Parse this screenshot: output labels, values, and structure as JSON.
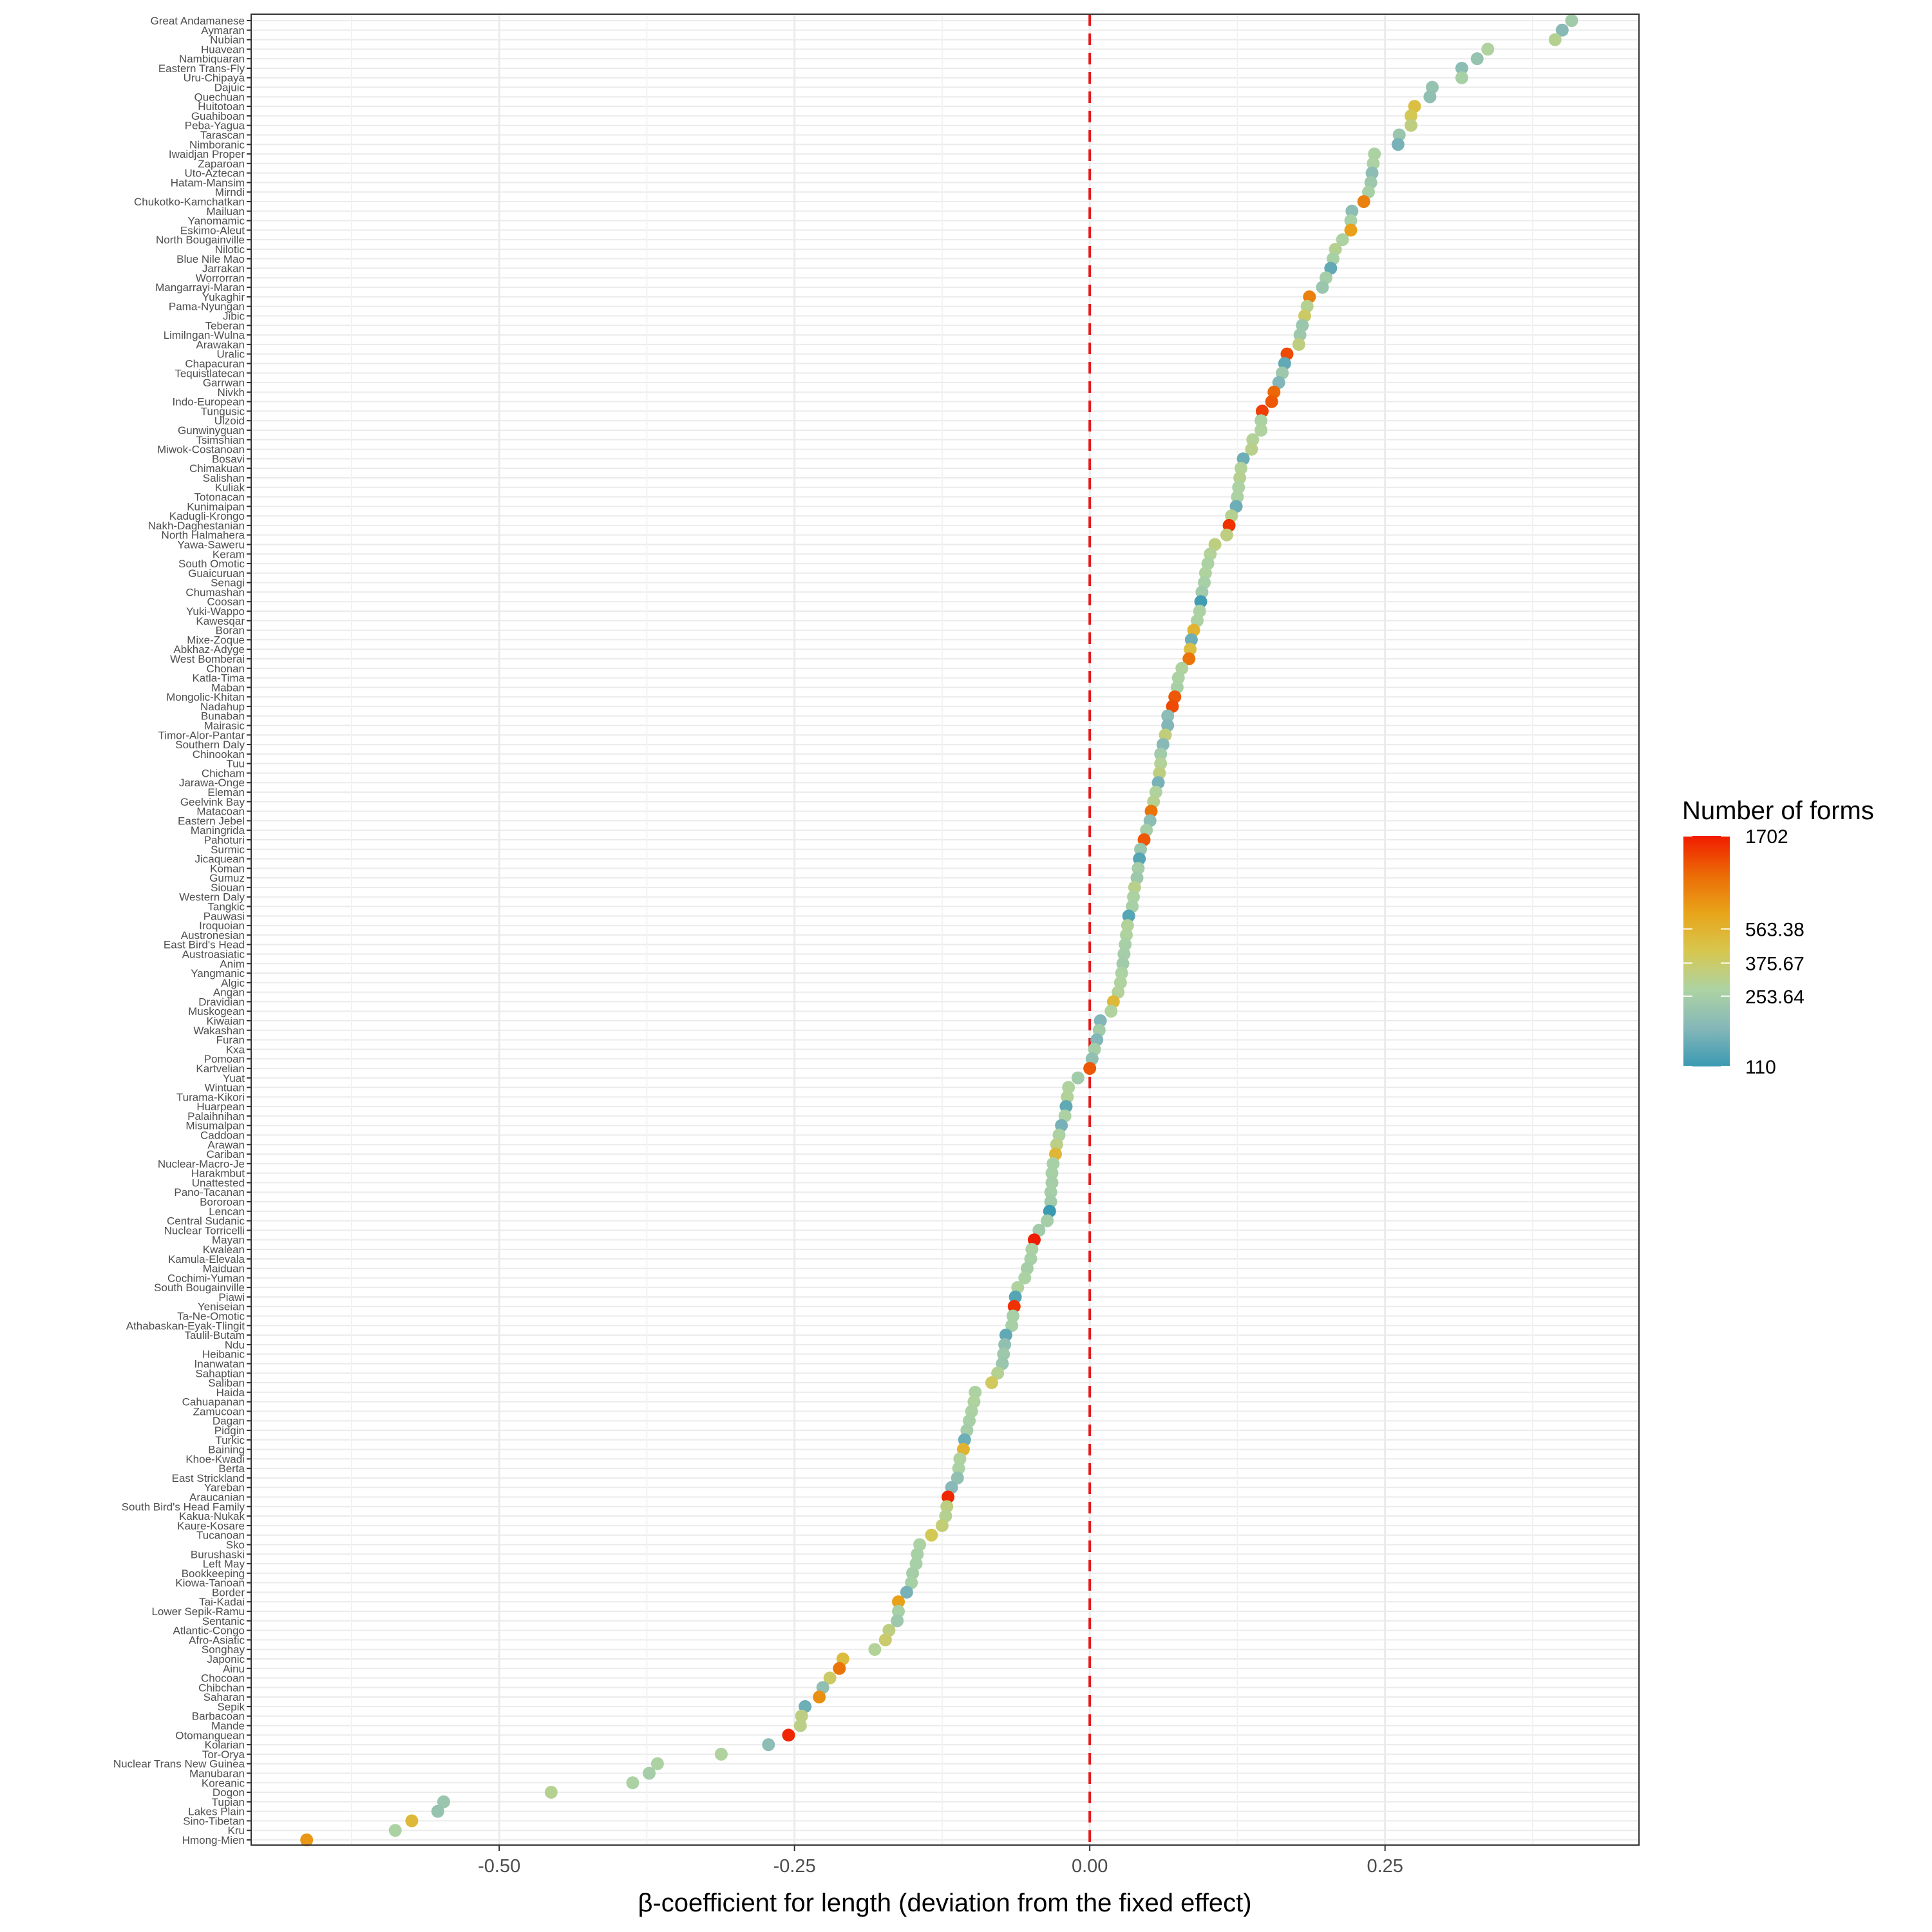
{
  "chart_data": {
    "type": "scatter",
    "title": "",
    "xlabel": "β-coefficient for length (deviation from the fixed effect)",
    "ylabel": "",
    "xlim": [
      -0.71,
      0.465
    ],
    "x_ticks": [
      -0.5,
      -0.25,
      0.0,
      0.25
    ],
    "x_tick_labels": [
      "-0.50",
      "-0.25",
      "0.00",
      "0.25"
    ],
    "reference_line": {
      "x": 0,
      "color": "#e41a1c",
      "style": "dashed"
    },
    "grid": true,
    "legend": {
      "title": "Number of forms",
      "placement": "right",
      "min": 110,
      "max": 1702,
      "breaks": [
        1702,
        563.38,
        375.67,
        253.64,
        110
      ],
      "break_labels": [
        "1702",
        "563.38",
        "375.67",
        "253.64",
        "110"
      ],
      "colors": [
        "#3a9ab2",
        "#85b7b9",
        "#add3a3",
        "#d7c74f",
        "#e8a419",
        "#ec6a06",
        "#f11b00"
      ]
    },
    "points": [
      {
        "family": "Great Andamanese",
        "x": 0.408,
        "forms": 240
      },
      {
        "family": "Aymaran",
        "x": 0.4,
        "forms": 180
      },
      {
        "family": "Nubian",
        "x": 0.394,
        "forms": 300
      },
      {
        "family": "Huavean",
        "x": 0.337,
        "forms": 280
      },
      {
        "family": "Nambiquaran",
        "x": 0.328,
        "forms": 210
      },
      {
        "family": "Eastern Trans-Fly",
        "x": 0.315,
        "forms": 190
      },
      {
        "family": "Uru-Chipaya",
        "x": 0.315,
        "forms": 260
      },
      {
        "family": "Dajuic",
        "x": 0.29,
        "forms": 210
      },
      {
        "family": "Quechuan",
        "x": 0.288,
        "forms": 200
      },
      {
        "family": "Huitotoan",
        "x": 0.275,
        "forms": 480
      },
      {
        "family": "Guahiboan",
        "x": 0.272,
        "forms": 420
      },
      {
        "family": "Peba-Yagua",
        "x": 0.272,
        "forms": 330
      },
      {
        "family": "Tarascan",
        "x": 0.262,
        "forms": 220
      },
      {
        "family": "Nimboranic",
        "x": 0.261,
        "forms": 160
      },
      {
        "family": "Iwaidjan Proper",
        "x": 0.241,
        "forms": 270
      },
      {
        "family": "Zaparoan",
        "x": 0.24,
        "forms": 270
      },
      {
        "family": "Uto-Aztecan",
        "x": 0.239,
        "forms": 190
      },
      {
        "family": "Hatam-Mansim",
        "x": 0.238,
        "forms": 230
      },
      {
        "family": "Mirndi",
        "x": 0.236,
        "forms": 260
      },
      {
        "family": "Chukotko-Kamchatkan",
        "x": 0.232,
        "forms": 900
      },
      {
        "family": "Mailuan",
        "x": 0.222,
        "forms": 190
      },
      {
        "family": "Yanomamic",
        "x": 0.221,
        "forms": 260
      },
      {
        "family": "Eskimo-Aleut",
        "x": 0.221,
        "forms": 700
      },
      {
        "family": "North Bougainville",
        "x": 0.214,
        "forms": 270
      },
      {
        "family": "Nilotic",
        "x": 0.208,
        "forms": 300
      },
      {
        "family": "Blue Nile Mao",
        "x": 0.206,
        "forms": 260
      },
      {
        "family": "Jarrakan",
        "x": 0.204,
        "forms": 140
      },
      {
        "family": "Worrorran",
        "x": 0.2,
        "forms": 250
      },
      {
        "family": "Mangarrayi-Maran",
        "x": 0.197,
        "forms": 220
      },
      {
        "family": "Yukaghir",
        "x": 0.186,
        "forms": 900
      },
      {
        "family": "Pama-Nyungan",
        "x": 0.184,
        "forms": 300
      },
      {
        "family": "Jibic",
        "x": 0.182,
        "forms": 380
      },
      {
        "family": "Teberan",
        "x": 0.18,
        "forms": 220
      },
      {
        "family": "Limilngan-Wulna",
        "x": 0.178,
        "forms": 230
      },
      {
        "family": "Arawakan",
        "x": 0.177,
        "forms": 330
      },
      {
        "family": "Uralic",
        "x": 0.167,
        "forms": 1300
      },
      {
        "family": "Chapacuran",
        "x": 0.165,
        "forms": 140
      },
      {
        "family": "Tequistlatecan",
        "x": 0.163,
        "forms": 230
      },
      {
        "family": "Garrwan",
        "x": 0.16,
        "forms": 170
      },
      {
        "family": "Nivkh",
        "x": 0.156,
        "forms": 1100
      },
      {
        "family": "Indo-European",
        "x": 0.154,
        "forms": 1200
      },
      {
        "family": "Tungusic",
        "x": 0.146,
        "forms": 1400
      },
      {
        "family": "Ulzoid",
        "x": 0.145,
        "forms": 270
      },
      {
        "family": "Gunwinyguan",
        "x": 0.145,
        "forms": 280
      },
      {
        "family": "Tsimshian",
        "x": 0.138,
        "forms": 290
      },
      {
        "family": "Miwok-Costanoan",
        "x": 0.137,
        "forms": 310
      },
      {
        "family": "Bosavi",
        "x": 0.13,
        "forms": 150
      },
      {
        "family": "Chimakuan",
        "x": 0.128,
        "forms": 290
      },
      {
        "family": "Salishan",
        "x": 0.127,
        "forms": 300
      },
      {
        "family": "Kuliak",
        "x": 0.126,
        "forms": 270
      },
      {
        "family": "Totonacan",
        "x": 0.125,
        "forms": 270
      },
      {
        "family": "Kunimaipan",
        "x": 0.124,
        "forms": 150
      },
      {
        "family": "Kadugli-Krongo",
        "x": 0.12,
        "forms": 300
      },
      {
        "family": "Nakh-Daghestanian",
        "x": 0.118,
        "forms": 1500
      },
      {
        "family": "North Halmahera",
        "x": 0.116,
        "forms": 330
      },
      {
        "family": "Yawa-Saweru",
        "x": 0.106,
        "forms": 330
      },
      {
        "family": "Keram",
        "x": 0.102,
        "forms": 290
      },
      {
        "family": "South Omotic",
        "x": 0.1,
        "forms": 270
      },
      {
        "family": "Guaicuruan",
        "x": 0.098,
        "forms": 280
      },
      {
        "family": "Senagi",
        "x": 0.097,
        "forms": 260
      },
      {
        "family": "Chumashan",
        "x": 0.095,
        "forms": 240
      },
      {
        "family": "Coosan",
        "x": 0.094,
        "forms": 115
      },
      {
        "family": "Yuki-Wappo",
        "x": 0.093,
        "forms": 270
      },
      {
        "family": "Kawesqar",
        "x": 0.091,
        "forms": 270
      },
      {
        "family": "Boran",
        "x": 0.088,
        "forms": 560
      },
      {
        "family": "Mixe-Zoque",
        "x": 0.086,
        "forms": 150
      },
      {
        "family": "Abkhaz-Adyge",
        "x": 0.085,
        "forms": 480
      },
      {
        "family": "West Bomberai",
        "x": 0.084,
        "forms": 1000
      },
      {
        "family": "Chonan",
        "x": 0.078,
        "forms": 280
      },
      {
        "family": "Katla-Tima",
        "x": 0.075,
        "forms": 270
      },
      {
        "family": "Maban",
        "x": 0.074,
        "forms": 260
      },
      {
        "family": "Mongolic-Khitan",
        "x": 0.072,
        "forms": 1200
      },
      {
        "family": "Nadahup",
        "x": 0.07,
        "forms": 1300
      },
      {
        "family": "Bunaban",
        "x": 0.066,
        "forms": 190
      },
      {
        "family": "Mairasic",
        "x": 0.066,
        "forms": 170
      },
      {
        "family": "Timor-Alor-Pantar",
        "x": 0.064,
        "forms": 340
      },
      {
        "family": "Southern Daly",
        "x": 0.062,
        "forms": 180
      },
      {
        "family": "Chinookan",
        "x": 0.06,
        "forms": 240
      },
      {
        "family": "Tuu",
        "x": 0.06,
        "forms": 290
      },
      {
        "family": "Chicham",
        "x": 0.059,
        "forms": 330
      },
      {
        "family": "Jarawa-Onge",
        "x": 0.058,
        "forms": 160
      },
      {
        "family": "Eleman",
        "x": 0.056,
        "forms": 280
      },
      {
        "family": "Geelvink Bay",
        "x": 0.054,
        "forms": 300
      },
      {
        "family": "Matacoan",
        "x": 0.052,
        "forms": 1000
      },
      {
        "family": "Eastern Jebel",
        "x": 0.051,
        "forms": 190
      },
      {
        "family": "Maningrida",
        "x": 0.048,
        "forms": 250
      },
      {
        "family": "Pahoturi",
        "x": 0.046,
        "forms": 1200
      },
      {
        "family": "Surmic",
        "x": 0.043,
        "forms": 220
      },
      {
        "family": "Jicaquean",
        "x": 0.042,
        "forms": 130
      },
      {
        "family": "Koman",
        "x": 0.041,
        "forms": 250
      },
      {
        "family": "Gumuz",
        "x": 0.04,
        "forms": 230
      },
      {
        "family": "Siouan",
        "x": 0.038,
        "forms": 310
      },
      {
        "family": "Western Daly",
        "x": 0.037,
        "forms": 270
      },
      {
        "family": "Tangkic",
        "x": 0.036,
        "forms": 260
      },
      {
        "family": "Pauwasi",
        "x": 0.033,
        "forms": 130
      },
      {
        "family": "Iroquoian",
        "x": 0.032,
        "forms": 290
      },
      {
        "family": "Austronesian",
        "x": 0.031,
        "forms": 280
      },
      {
        "family": "East Bird's Head",
        "x": 0.03,
        "forms": 260
      },
      {
        "family": "Austroasiatic",
        "x": 0.029,
        "forms": 250
      },
      {
        "family": "Anim",
        "x": 0.028,
        "forms": 240
      },
      {
        "family": "Yangmanic",
        "x": 0.027,
        "forms": 270
      },
      {
        "family": "Algic",
        "x": 0.026,
        "forms": 280
      },
      {
        "family": "Angan",
        "x": 0.024,
        "forms": 290
      },
      {
        "family": "Dravidian",
        "x": 0.02,
        "forms": 520
      },
      {
        "family": "Muskogean",
        "x": 0.018,
        "forms": 280
      },
      {
        "family": "Kiwaian",
        "x": 0.009,
        "forms": 170
      },
      {
        "family": "Wakashan",
        "x": 0.008,
        "forms": 240
      },
      {
        "family": "Furan",
        "x": 0.006,
        "forms": 170
      },
      {
        "family": "Kxa",
        "x": 0.004,
        "forms": 250
      },
      {
        "family": "Pomoan",
        "x": 0.002,
        "forms": 200
      },
      {
        "family": "Kartvelian",
        "x": 0.0,
        "forms": 1200
      },
      {
        "family": "Yuat",
        "x": -0.01,
        "forms": 240
      },
      {
        "family": "Wintuan",
        "x": -0.018,
        "forms": 280
      },
      {
        "family": "Turama-Kikori",
        "x": -0.019,
        "forms": 290
      },
      {
        "family": "Huarpean",
        "x": -0.02,
        "forms": 140
      },
      {
        "family": "Palaihnihan",
        "x": -0.021,
        "forms": 270
      },
      {
        "family": "Misumalpan",
        "x": -0.024,
        "forms": 160
      },
      {
        "family": "Caddoan",
        "x": -0.026,
        "forms": 270
      },
      {
        "family": "Arawan",
        "x": -0.028,
        "forms": 320
      },
      {
        "family": "Cariban",
        "x": -0.029,
        "forms": 540
      },
      {
        "family": "Nuclear-Macro-Je",
        "x": -0.031,
        "forms": 260
      },
      {
        "family": "Harakmbut",
        "x": -0.032,
        "forms": 260
      },
      {
        "family": "Unattested",
        "x": -0.032,
        "forms": 250
      },
      {
        "family": "Pano-Tacanan",
        "x": -0.033,
        "forms": 250
      },
      {
        "family": "Bororoan",
        "x": -0.033,
        "forms": 240
      },
      {
        "family": "Lencan",
        "x": -0.034,
        "forms": 110
      },
      {
        "family": "Central Sudanic",
        "x": -0.036,
        "forms": 250
      },
      {
        "family": "Nuclear Torricelli",
        "x": -0.043,
        "forms": 240
      },
      {
        "family": "Mayan",
        "x": -0.047,
        "forms": 1702
      },
      {
        "family": "Kwalean",
        "x": -0.049,
        "forms": 270
      },
      {
        "family": "Kamula-Elevala",
        "x": -0.05,
        "forms": 260
      },
      {
        "family": "Maiduan",
        "x": -0.053,
        "forms": 250
      },
      {
        "family": "Cochimi-Yuman",
        "x": -0.055,
        "forms": 270
      },
      {
        "family": "South Bougainville",
        "x": -0.061,
        "forms": 280
      },
      {
        "family": "Piawi",
        "x": -0.063,
        "forms": 130
      },
      {
        "family": "Yeniseian",
        "x": -0.064,
        "forms": 1500
      },
      {
        "family": "Ta-Ne-Omotic",
        "x": -0.065,
        "forms": 260
      },
      {
        "family": "Athabaskan-Eyak-Tlingit",
        "x": -0.066,
        "forms": 260
      },
      {
        "family": "Taulil-Butam",
        "x": -0.071,
        "forms": 140
      },
      {
        "family": "Ndu",
        "x": -0.072,
        "forms": 200
      },
      {
        "family": "Heibanic",
        "x": -0.073,
        "forms": 230
      },
      {
        "family": "Inanwatan",
        "x": -0.074,
        "forms": 220
      },
      {
        "family": "Sahaptian",
        "x": -0.078,
        "forms": 300
      },
      {
        "family": "Saliban",
        "x": -0.083,
        "forms": 400
      },
      {
        "family": "Haida",
        "x": -0.097,
        "forms": 270
      },
      {
        "family": "Cahuapanan",
        "x": -0.098,
        "forms": 280
      },
      {
        "family": "Zamucoan",
        "x": -0.1,
        "forms": 270
      },
      {
        "family": "Dagan",
        "x": -0.102,
        "forms": 260
      },
      {
        "family": "Pidgin",
        "x": -0.104,
        "forms": 250
      },
      {
        "family": "Turkic",
        "x": -0.106,
        "forms": 150
      },
      {
        "family": "Baining",
        "x": -0.107,
        "forms": 560
      },
      {
        "family": "Khoe-Kwadi",
        "x": -0.11,
        "forms": 280
      },
      {
        "family": "Berta",
        "x": -0.111,
        "forms": 270
      },
      {
        "family": "East Strickland",
        "x": -0.112,
        "forms": 200
      },
      {
        "family": "Yareban",
        "x": -0.117,
        "forms": 180
      },
      {
        "family": "Araucanian",
        "x": -0.12,
        "forms": 1600
      },
      {
        "family": "South Bird's Head Family",
        "x": -0.121,
        "forms": 330
      },
      {
        "family": "Kakua-Nukak",
        "x": -0.122,
        "forms": 300
      },
      {
        "family": "Kaure-Kosare",
        "x": -0.125,
        "forms": 350
      },
      {
        "family": "Tucanoan",
        "x": -0.134,
        "forms": 420
      },
      {
        "family": "Sko",
        "x": -0.144,
        "forms": 270
      },
      {
        "family": "Burushaski",
        "x": -0.146,
        "forms": 260
      },
      {
        "family": "Left May",
        "x": -0.147,
        "forms": 260
      },
      {
        "family": "Bookkeeping",
        "x": -0.15,
        "forms": 250
      },
      {
        "family": "Kiowa-Tanoan",
        "x": -0.151,
        "forms": 260
      },
      {
        "family": "Border",
        "x": -0.155,
        "forms": 160
      },
      {
        "family": "Tai-Kadai",
        "x": -0.162,
        "forms": 700
      },
      {
        "family": "Lower Sepik-Ramu",
        "x": -0.162,
        "forms": 260
      },
      {
        "family": "Sentanic",
        "x": -0.163,
        "forms": 230
      },
      {
        "family": "Atlantic-Congo",
        "x": -0.17,
        "forms": 330
      },
      {
        "family": "Afro-Asiatic",
        "x": -0.173,
        "forms": 370
      },
      {
        "family": "Songhay",
        "x": -0.182,
        "forms": 290
      },
      {
        "family": "Japonic",
        "x": -0.209,
        "forms": 500
      },
      {
        "family": "Ainu",
        "x": -0.212,
        "forms": 1000
      },
      {
        "family": "Chocoan",
        "x": -0.22,
        "forms": 380
      },
      {
        "family": "Chibchan",
        "x": -0.226,
        "forms": 200
      },
      {
        "family": "Saharan",
        "x": -0.229,
        "forms": 800
      },
      {
        "family": "Sepik",
        "x": -0.241,
        "forms": 150
      },
      {
        "family": "Barbacoan",
        "x": -0.244,
        "forms": 330
      },
      {
        "family": "Mande",
        "x": -0.245,
        "forms": 320
      },
      {
        "family": "Otomanguean",
        "x": -0.255,
        "forms": 1600
      },
      {
        "family": "Kolarian",
        "x": -0.272,
        "forms": 190
      },
      {
        "family": "Tor-Orya",
        "x": -0.312,
        "forms": 280
      },
      {
        "family": "Nuclear Trans New Guinea",
        "x": -0.366,
        "forms": 270
      },
      {
        "family": "Manubaran",
        "x": -0.373,
        "forms": 250
      },
      {
        "family": "Koreanic",
        "x": -0.387,
        "forms": 270
      },
      {
        "family": "Dogon",
        "x": -0.456,
        "forms": 300
      },
      {
        "family": "Tupian",
        "x": -0.547,
        "forms": 220
      },
      {
        "family": "Lakes Plain",
        "x": -0.552,
        "forms": 210
      },
      {
        "family": "Sino-Tibetan",
        "x": -0.574,
        "forms": 520
      },
      {
        "family": "Kru",
        "x": -0.588,
        "forms": 270
      },
      {
        "family": "Hmong-Mien",
        "x": -0.663,
        "forms": 750
      }
    ]
  }
}
